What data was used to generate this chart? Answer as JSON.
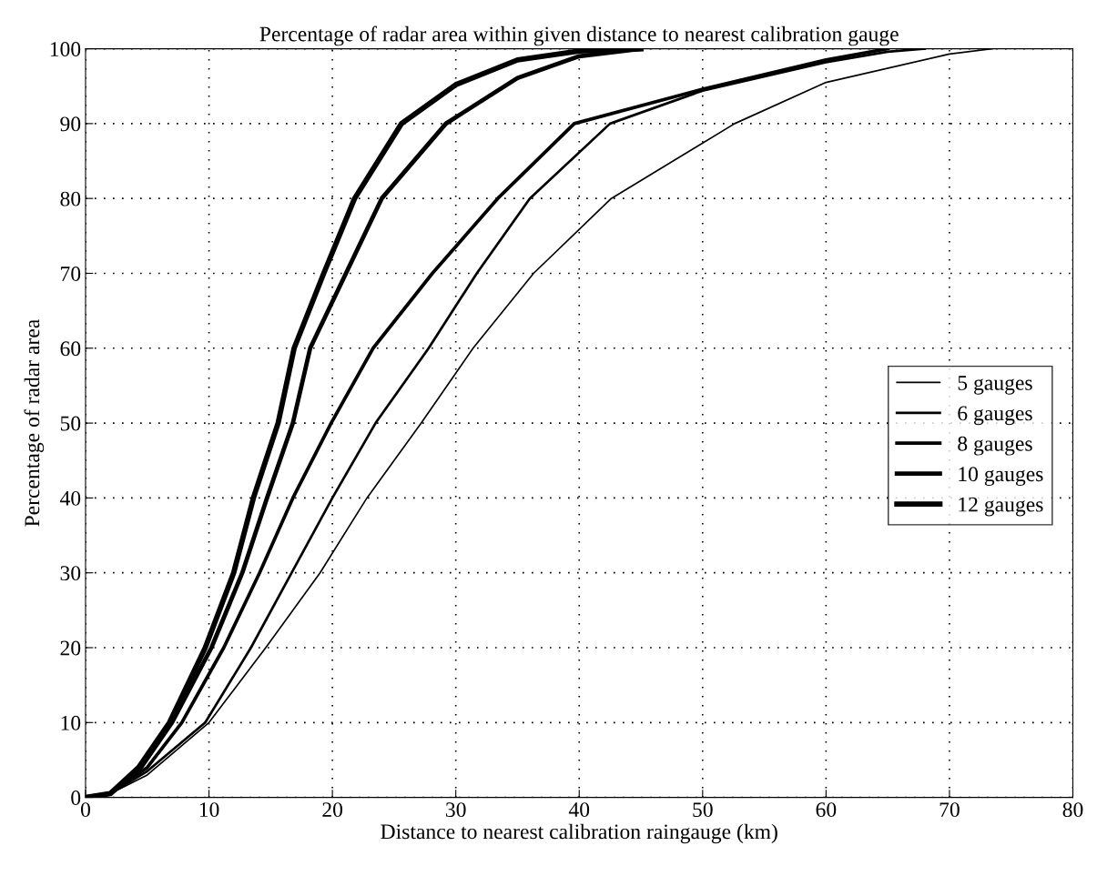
{
  "chart_data": {
    "type": "line",
    "title": "Percentage of radar area within given distance to nearest calibration gauge",
    "xlabel": "Distance to nearest calibration raingauge (km)",
    "ylabel": "Percentage of radar area",
    "xlim": [
      0,
      80
    ],
    "ylim": [
      0,
      100
    ],
    "xticks": [
      0,
      10,
      20,
      30,
      40,
      50,
      60,
      70,
      80
    ],
    "yticks": [
      0,
      10,
      20,
      30,
      40,
      50,
      60,
      70,
      80,
      90,
      100
    ],
    "grid": true,
    "legend": "right",
    "line_style": "solid",
    "marker": "none",
    "series": [
      {
        "name": "5 gauges",
        "color": "#000000",
        "x": [
          0,
          2,
          5,
          10,
          14.6,
          19,
          22.8,
          27.2,
          31.4,
          36.3,
          42.6,
          52.6,
          60,
          70,
          73.5
        ],
        "values": [
          0,
          0.5,
          3,
          10,
          20,
          30,
          40,
          50,
          60,
          70,
          80,
          90,
          95.5,
          99.3,
          100
        ]
      },
      {
        "name": "6 gauges",
        "color": "#000000",
        "x": [
          0,
          2,
          5,
          9.7,
          13.4,
          16.7,
          20,
          23.5,
          27.8,
          31.7,
          36,
          42.5,
          50,
          60,
          65,
          68
        ],
        "values": [
          0,
          0.5,
          3.5,
          10,
          20,
          30,
          40,
          50,
          60,
          70,
          80,
          90,
          94.4,
          98.2,
          99.6,
          100
        ]
      },
      {
        "name": "8 gauges",
        "color": "#000000",
        "x": [
          0,
          2,
          5,
          7.8,
          11.2,
          14.1,
          16.8,
          19.9,
          23.3,
          28.1,
          33.4,
          39.6,
          50,
          60,
          65
        ],
        "values": [
          0,
          0.5,
          4,
          10,
          20,
          30,
          40,
          50,
          60,
          70,
          80,
          90,
          94.6,
          98.5,
          100
        ]
      },
      {
        "name": "10 gauges",
        "color": "#000000",
        "x": [
          0,
          2,
          4.5,
          7,
          10.2,
          12.7,
          14.7,
          16.8,
          18.2,
          21.1,
          24,
          29.2,
          35,
          40,
          45
        ],
        "values": [
          0,
          0.5,
          4,
          10,
          20,
          30,
          40,
          50,
          60,
          70,
          80,
          90,
          96.1,
          99,
          100
        ]
      },
      {
        "name": "12 gauges",
        "color": "#000000",
        "x": [
          0,
          2,
          4.3,
          6.8,
          9.7,
          12,
          13.6,
          15.6,
          16.9,
          19.3,
          21.8,
          25.6,
          30,
          35,
          40,
          45
        ],
        "values": [
          0,
          0.5,
          4,
          10,
          20,
          30,
          40,
          50,
          60,
          70,
          80,
          90,
          95.2,
          98.5,
          99.7,
          100
        ]
      }
    ]
  }
}
